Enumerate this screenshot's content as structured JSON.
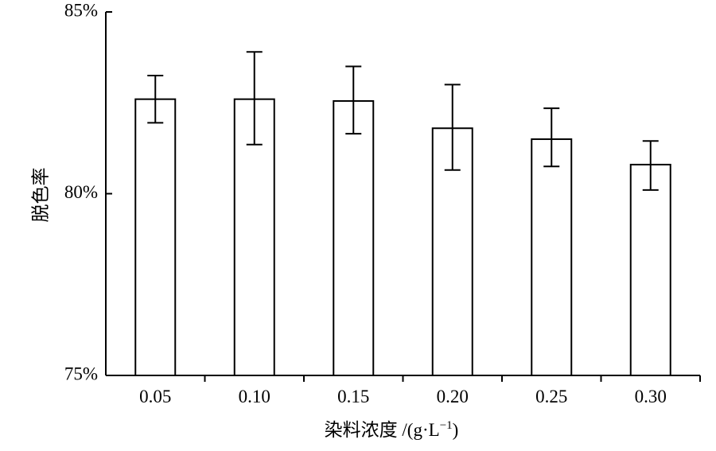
{
  "chart_data": {
    "type": "bar",
    "title": "",
    "xlabel": {
      "main": "染料浓度",
      "unit_prefix": " /(g·L",
      "unit_exponent": "−1",
      "unit_suffix": ")"
    },
    "ylabel": "脱色率",
    "categories": [
      "0.05",
      "0.10",
      "0.15",
      "0.20",
      "0.25",
      "0.30"
    ],
    "values": [
      82.6,
      82.6,
      82.55,
      81.8,
      81.5,
      80.8
    ],
    "error_low": [
      81.95,
      81.35,
      81.65,
      80.65,
      80.75,
      80.1
    ],
    "error_high": [
      83.25,
      83.9,
      83.5,
      83.0,
      82.35,
      81.45
    ],
    "ylim": [
      75,
      85
    ],
    "yticks": [
      {
        "value": 75,
        "label": "75%"
      },
      {
        "value": 80,
        "label": "80%"
      },
      {
        "value": 85,
        "label": "85%"
      }
    ],
    "grid": false,
    "legend": false,
    "bar_fill": "#ffffff",
    "stroke_color": "#000000"
  }
}
